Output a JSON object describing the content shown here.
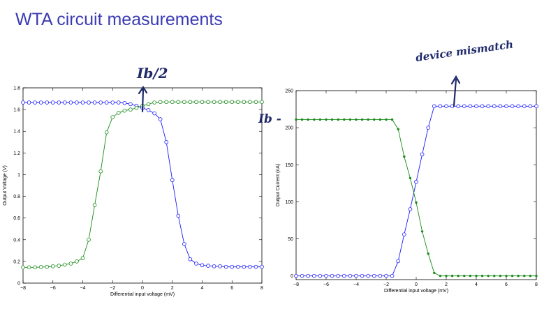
{
  "slide": {
    "title": "WTA circuit measurements"
  },
  "annotations": {
    "left_top": "Ib/2",
    "right_left": "Ib -",
    "right_top": "device mismatch"
  },
  "colors": {
    "title": "#3b3bb3",
    "series_blue": "#1a1aff",
    "series_green": "#1a8a1a",
    "ink": "#1f2a6b"
  },
  "chart_data": [
    {
      "type": "line",
      "title": "",
      "xlabel": "Differential input voltage (mV)",
      "ylabel": "Output Voltage (V)",
      "xlim": [
        -8,
        8
      ],
      "ylim": [
        0,
        1.8
      ],
      "xticks": [
        -8,
        -6,
        -4,
        -2,
        0,
        2,
        4,
        6,
        8
      ],
      "xtick_labels": [
        "−8",
        "−6",
        "−4",
        "−2",
        "0",
        "2",
        "4",
        "6",
        "8"
      ],
      "yticks": [
        0,
        0.2,
        0.4,
        0.6,
        0.8,
        1,
        1.2,
        1.4,
        1.6,
        1.8
      ],
      "ytick_labels": [
        "0",
        "0.2",
        "0.4",
        "0.6",
        "0.8",
        "1",
        "1.2",
        "1.4",
        "1.6",
        "1.8"
      ],
      "grid": false,
      "marker": "circle",
      "x": [
        -8,
        -7.6,
        -7.2,
        -6.8,
        -6.4,
        -6,
        -5.6,
        -5.2,
        -4.8,
        -4.4,
        -4,
        -3.6,
        -3.2,
        -2.8,
        -2.4,
        -2,
        -1.6,
        -1.2,
        -0.8,
        -0.4,
        0,
        0.4,
        0.8,
        1.2,
        1.6,
        2,
        2.4,
        2.8,
        3.2,
        3.6,
        4,
        4.4,
        4.8,
        5.2,
        5.6,
        6,
        6.4,
        6.8,
        7.2,
        7.6,
        8
      ],
      "series": [
        {
          "color_key": "series_blue",
          "values": [
            1.665,
            1.665,
            1.665,
            1.665,
            1.665,
            1.665,
            1.665,
            1.665,
            1.665,
            1.665,
            1.665,
            1.665,
            1.665,
            1.665,
            1.665,
            1.665,
            1.665,
            1.66,
            1.65,
            1.635,
            1.615,
            1.595,
            1.565,
            1.51,
            1.3,
            0.95,
            0.62,
            0.36,
            0.22,
            0.18,
            0.165,
            0.16,
            0.155,
            0.155,
            0.15,
            0.15,
            0.15,
            0.15,
            0.15,
            0.15,
            0.15
          ]
        },
        {
          "color_key": "series_green",
          "values": [
            0.145,
            0.145,
            0.145,
            0.148,
            0.15,
            0.155,
            0.16,
            0.17,
            0.18,
            0.2,
            0.23,
            0.4,
            0.72,
            1.03,
            1.39,
            1.53,
            1.57,
            1.59,
            1.6,
            1.615,
            1.635,
            1.65,
            1.665,
            1.67,
            1.67,
            1.67,
            1.67,
            1.67,
            1.67,
            1.67,
            1.67,
            1.67,
            1.67,
            1.67,
            1.67,
            1.67,
            1.67,
            1.67,
            1.67,
            1.67,
            1.67
          ]
        }
      ]
    },
    {
      "type": "line",
      "title": "",
      "xlabel": "Differential input voltage (mV)",
      "ylabel": "Output Current (nA)",
      "xlim": [
        -8,
        8
      ],
      "ylim": [
        -5,
        250
      ],
      "xticks": [
        -8,
        -6,
        -4,
        -2,
        0,
        2,
        4,
        6,
        8
      ],
      "xtick_labels": [
        "−8",
        "−6",
        "−4",
        "−2",
        "0",
        "2",
        "4",
        "6",
        "8"
      ],
      "yticks": [
        0,
        50,
        100,
        150,
        200,
        250
      ],
      "ytick_labels": [
        "0",
        "50",
        "100",
        "150",
        "200",
        "250"
      ],
      "grid": false,
      "x": [
        -8,
        -7.6,
        -7.2,
        -6.8,
        -6.4,
        -6,
        -5.6,
        -5.2,
        -4.8,
        -4.4,
        -4,
        -3.6,
        -3.2,
        -2.8,
        -2.4,
        -2,
        -1.6,
        -1.2,
        -0.8,
        -0.4,
        0,
        0.4,
        0.8,
        1.2,
        1.6,
        2,
        2.4,
        2.8,
        3.2,
        3.6,
        4,
        4.4,
        4.8,
        5.2,
        5.6,
        6,
        6.4,
        6.8,
        7.2,
        7.6,
        8
      ],
      "series": [
        {
          "color_key": "series_blue",
          "marker": "circle",
          "values": [
            0,
            0,
            0,
            0,
            0,
            0,
            0,
            0,
            0,
            0,
            0,
            0,
            0,
            0,
            0,
            0,
            0,
            20,
            56,
            90,
            127,
            164,
            200,
            229,
            229,
            229,
            229,
            229,
            229,
            229,
            229,
            229,
            229,
            229,
            229,
            229,
            229,
            229,
            229,
            229,
            229
          ]
        },
        {
          "color_key": "series_green",
          "marker": "dot",
          "values": [
            211,
            211,
            211,
            211,
            211,
            211,
            211,
            211,
            211,
            211,
            211,
            211,
            211,
            211,
            211,
            211,
            211,
            198,
            161,
            132,
            99,
            60,
            30,
            4,
            0,
            0,
            0,
            0,
            0,
            0,
            0,
            0,
            0,
            0,
            0,
            0,
            0,
            0,
            0,
            0,
            0
          ]
        }
      ]
    }
  ]
}
